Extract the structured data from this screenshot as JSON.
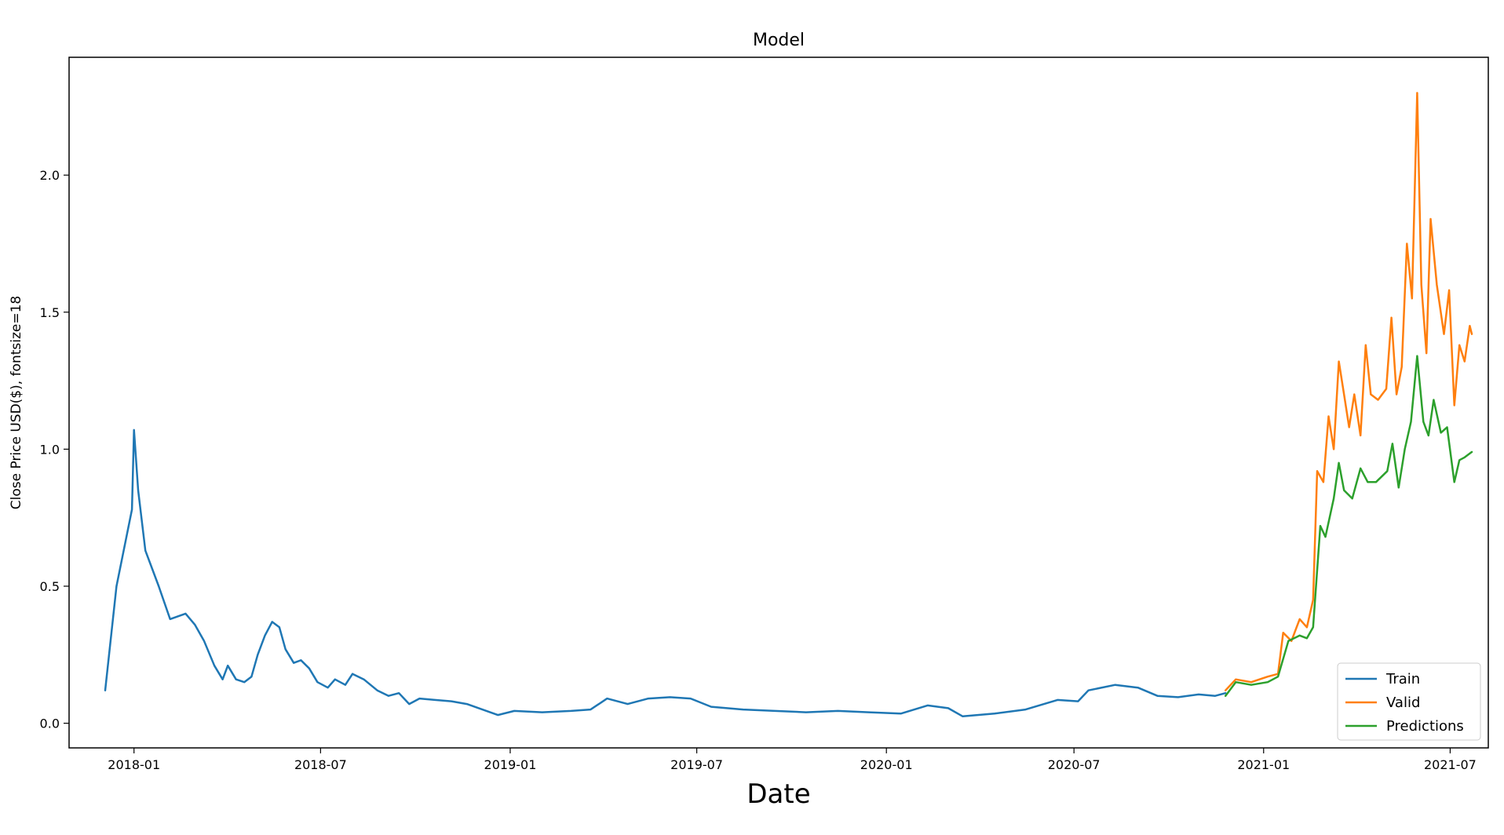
{
  "chart_data": {
    "type": "line",
    "title": "Model",
    "xlabel": "Date",
    "ylabel": "Close Price USD($), fontsize=18",
    "xlim": [
      "2017-10-30",
      "2021-08-07"
    ],
    "ylim": [
      -0.09,
      2.43
    ],
    "x_ticks": [
      "2018-01",
      "2018-07",
      "2019-01",
      "2019-07",
      "2020-01",
      "2020-07",
      "2021-01",
      "2021-07"
    ],
    "y_ticks": [
      0.0,
      0.5,
      1.0,
      1.5,
      2.0
    ],
    "y_tick_labels": [
      "0.0",
      "0.5",
      "1.0",
      "1.5",
      "2.0"
    ],
    "grid": false,
    "legend": "lower-right",
    "series": [
      {
        "name": "Train",
        "color": "#1f77b4",
        "points": [
          [
            "2017-12-04",
            0.12
          ],
          [
            "2017-12-15",
            0.5
          ],
          [
            "2017-12-30",
            0.78
          ],
          [
            "2018-01-01",
            1.07
          ],
          [
            "2018-01-05",
            0.85
          ],
          [
            "2018-01-12",
            0.63
          ],
          [
            "2018-01-25",
            0.5
          ],
          [
            "2018-02-05",
            0.38
          ],
          [
            "2018-02-20",
            0.4
          ],
          [
            "2018-03-01",
            0.36
          ],
          [
            "2018-03-10",
            0.3
          ],
          [
            "2018-03-20",
            0.21
          ],
          [
            "2018-03-28",
            0.16
          ],
          [
            "2018-04-02",
            0.21
          ],
          [
            "2018-04-10",
            0.16
          ],
          [
            "2018-04-18",
            0.15
          ],
          [
            "2018-04-25",
            0.17
          ],
          [
            "2018-05-01",
            0.25
          ],
          [
            "2018-05-08",
            0.32
          ],
          [
            "2018-05-15",
            0.37
          ],
          [
            "2018-05-22",
            0.35
          ],
          [
            "2018-05-28",
            0.27
          ],
          [
            "2018-06-05",
            0.22
          ],
          [
            "2018-06-12",
            0.23
          ],
          [
            "2018-06-20",
            0.2
          ],
          [
            "2018-06-28",
            0.15
          ],
          [
            "2018-07-08",
            0.13
          ],
          [
            "2018-07-15",
            0.16
          ],
          [
            "2018-07-25",
            0.14
          ],
          [
            "2018-08-01",
            0.18
          ],
          [
            "2018-08-12",
            0.16
          ],
          [
            "2018-08-25",
            0.12
          ],
          [
            "2018-09-05",
            0.1
          ],
          [
            "2018-09-15",
            0.11
          ],
          [
            "2018-09-25",
            0.07
          ],
          [
            "2018-10-05",
            0.09
          ],
          [
            "2018-10-20",
            0.085
          ],
          [
            "2018-11-05",
            0.08
          ],
          [
            "2018-11-20",
            0.07
          ],
          [
            "2018-12-05",
            0.05
          ],
          [
            "2018-12-20",
            0.03
          ],
          [
            "2019-01-05",
            0.045
          ],
          [
            "2019-02-01",
            0.04
          ],
          [
            "2019-03-01",
            0.045
          ],
          [
            "2019-03-20",
            0.05
          ],
          [
            "2019-04-05",
            0.09
          ],
          [
            "2019-04-25",
            0.07
          ],
          [
            "2019-05-15",
            0.09
          ],
          [
            "2019-06-05",
            0.095
          ],
          [
            "2019-06-25",
            0.09
          ],
          [
            "2019-07-15",
            0.06
          ],
          [
            "2019-08-15",
            0.05
          ],
          [
            "2019-09-15",
            0.045
          ],
          [
            "2019-10-15",
            0.04
          ],
          [
            "2019-11-15",
            0.045
          ],
          [
            "2019-12-15",
            0.04
          ],
          [
            "2020-01-15",
            0.035
          ],
          [
            "2020-02-10",
            0.065
          ],
          [
            "2020-03-01",
            0.055
          ],
          [
            "2020-03-15",
            0.025
          ],
          [
            "2020-04-15",
            0.035
          ],
          [
            "2020-05-15",
            0.05
          ],
          [
            "2020-06-15",
            0.085
          ],
          [
            "2020-07-05",
            0.08
          ],
          [
            "2020-07-15",
            0.12
          ],
          [
            "2020-08-10",
            0.14
          ],
          [
            "2020-09-01",
            0.13
          ],
          [
            "2020-09-20",
            0.1
          ],
          [
            "2020-10-10",
            0.095
          ],
          [
            "2020-10-30",
            0.105
          ],
          [
            "2020-11-15",
            0.1
          ],
          [
            "2020-11-25",
            0.11
          ]
        ]
      },
      {
        "name": "Valid",
        "color": "#ff7f0e",
        "points": [
          [
            "2020-11-25",
            0.12
          ],
          [
            "2020-12-05",
            0.16
          ],
          [
            "2020-12-20",
            0.15
          ],
          [
            "2021-01-05",
            0.17
          ],
          [
            "2021-01-15",
            0.18
          ],
          [
            "2021-01-20",
            0.33
          ],
          [
            "2021-01-28",
            0.3
          ],
          [
            "2021-02-05",
            0.38
          ],
          [
            "2021-02-12",
            0.35
          ],
          [
            "2021-02-18",
            0.45
          ],
          [
            "2021-02-22",
            0.92
          ],
          [
            "2021-02-28",
            0.88
          ],
          [
            "2021-03-05",
            1.12
          ],
          [
            "2021-03-10",
            1.0
          ],
          [
            "2021-03-15",
            1.32
          ],
          [
            "2021-03-20",
            1.2
          ],
          [
            "2021-03-25",
            1.08
          ],
          [
            "2021-03-30",
            1.2
          ],
          [
            "2021-04-05",
            1.05
          ],
          [
            "2021-04-10",
            1.38
          ],
          [
            "2021-04-15",
            1.2
          ],
          [
            "2021-04-22",
            1.18
          ],
          [
            "2021-04-30",
            1.22
          ],
          [
            "2021-05-05",
            1.48
          ],
          [
            "2021-05-10",
            1.2
          ],
          [
            "2021-05-15",
            1.3
          ],
          [
            "2021-05-20",
            1.75
          ],
          [
            "2021-05-25",
            1.55
          ],
          [
            "2021-05-30",
            2.3
          ],
          [
            "2021-06-03",
            1.6
          ],
          [
            "2021-06-08",
            1.35
          ],
          [
            "2021-06-12",
            1.84
          ],
          [
            "2021-06-18",
            1.6
          ],
          [
            "2021-06-25",
            1.42
          ],
          [
            "2021-06-30",
            1.58
          ],
          [
            "2021-07-05",
            1.16
          ],
          [
            "2021-07-10",
            1.38
          ],
          [
            "2021-07-15",
            1.32
          ],
          [
            "2021-07-20",
            1.45
          ],
          [
            "2021-07-22",
            1.42
          ]
        ]
      },
      {
        "name": "Predictions",
        "color": "#2ca02c",
        "points": [
          [
            "2020-11-25",
            0.1
          ],
          [
            "2020-12-05",
            0.15
          ],
          [
            "2020-12-20",
            0.14
          ],
          [
            "2021-01-05",
            0.15
          ],
          [
            "2021-01-15",
            0.17
          ],
          [
            "2021-01-25",
            0.3
          ],
          [
            "2021-02-05",
            0.32
          ],
          [
            "2021-02-12",
            0.31
          ],
          [
            "2021-02-18",
            0.35
          ],
          [
            "2021-02-25",
            0.72
          ],
          [
            "2021-03-02",
            0.68
          ],
          [
            "2021-03-10",
            0.82
          ],
          [
            "2021-03-15",
            0.95
          ],
          [
            "2021-03-20",
            0.85
          ],
          [
            "2021-03-28",
            0.82
          ],
          [
            "2021-04-05",
            0.93
          ],
          [
            "2021-04-12",
            0.88
          ],
          [
            "2021-04-20",
            0.88
          ],
          [
            "2021-05-01",
            0.92
          ],
          [
            "2021-05-06",
            1.02
          ],
          [
            "2021-05-12",
            0.86
          ],
          [
            "2021-05-18",
            1.0
          ],
          [
            "2021-05-24",
            1.1
          ],
          [
            "2021-05-30",
            1.34
          ],
          [
            "2021-06-05",
            1.1
          ],
          [
            "2021-06-10",
            1.05
          ],
          [
            "2021-06-15",
            1.18
          ],
          [
            "2021-06-22",
            1.06
          ],
          [
            "2021-06-28",
            1.08
          ],
          [
            "2021-07-05",
            0.88
          ],
          [
            "2021-07-10",
            0.96
          ],
          [
            "2021-07-15",
            0.97
          ],
          [
            "2021-07-22",
            0.99
          ]
        ]
      }
    ]
  }
}
